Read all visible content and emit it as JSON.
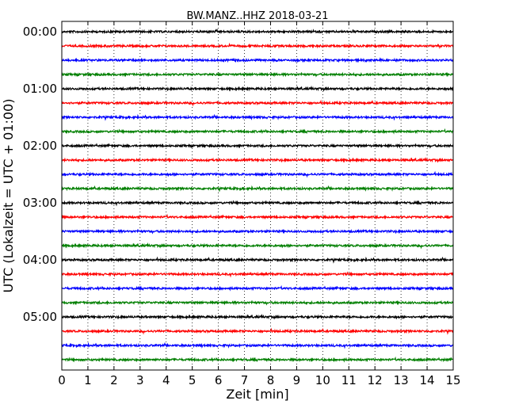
{
  "chart_data": {
    "type": "line",
    "title": "BW.MANZ..HHZ 2018-03-21",
    "xlabel": "Zeit  [min]",
    "ylabel": "UTC (Lokalzeit = UTC + 01:00)",
    "xlim": [
      0,
      15
    ],
    "x_ticks": [
      "0",
      "1",
      "2",
      "3",
      "4",
      "5",
      "6",
      "7",
      "8",
      "9",
      "10",
      "11",
      "12",
      "13",
      "14",
      "15"
    ],
    "y_tick_labels": [
      "00:00",
      "01:00",
      "02:00",
      "03:00",
      "04:00",
      "05:00"
    ],
    "grid": "vertical dotted",
    "trace_colors": [
      "#000000",
      "#ff0000",
      "#0000ff",
      "#007f00"
    ],
    "series": [
      {
        "start": "00:00"
      },
      {
        "start": "00:15"
      },
      {
        "start": "00:30"
      },
      {
        "start": "00:45"
      },
      {
        "start": "01:00"
      },
      {
        "start": "01:15"
      },
      {
        "start": "01:30"
      },
      {
        "start": "01:45"
      },
      {
        "start": "02:00"
      },
      {
        "start": "02:15"
      },
      {
        "start": "02:30"
      },
      {
        "start": "02:45"
      },
      {
        "start": "03:00"
      },
      {
        "start": "03:15"
      },
      {
        "start": "03:30"
      },
      {
        "start": "03:45"
      },
      {
        "start": "04:00"
      },
      {
        "start": "04:15"
      },
      {
        "start": "04:30"
      },
      {
        "start": "04:45"
      },
      {
        "start": "05:00"
      },
      {
        "start": "05:15"
      },
      {
        "start": "05:30"
      },
      {
        "start": "05:45"
      }
    ]
  }
}
